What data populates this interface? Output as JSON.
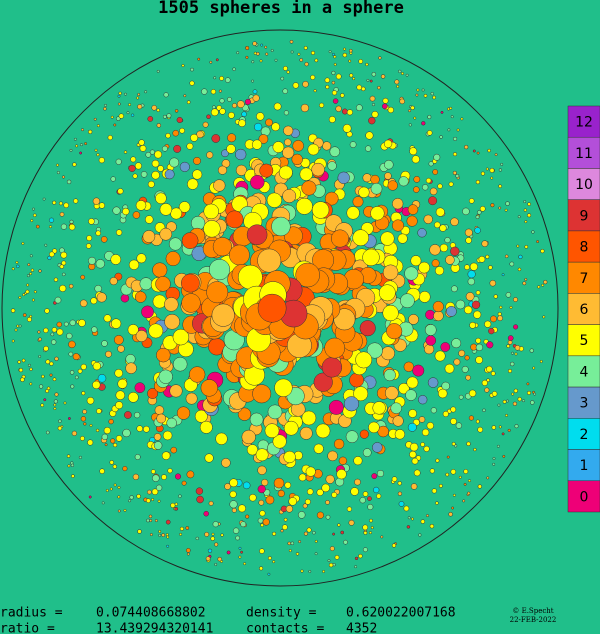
{
  "title": "1505 spheres in a sphere",
  "legend": [
    {
      "label": "12",
      "color": "#9922cc"
    },
    {
      "label": "11",
      "color": "#b34fd9"
    },
    {
      "label": "10",
      "color": "#dd88dd"
    },
    {
      "label": "9",
      "color": "#dd3333"
    },
    {
      "label": "8",
      "color": "#ff5500"
    },
    {
      "label": "7",
      "color": "#ff8800"
    },
    {
      "label": "6",
      "color": "#ffbb33"
    },
    {
      "label": "5",
      "color": "#ffff00"
    },
    {
      "label": "4",
      "color": "#77ee99"
    },
    {
      "label": "3",
      "color": "#6699cc"
    },
    {
      "label": "2",
      "color": "#00ddee"
    },
    {
      "label": "1",
      "color": "#33aaee"
    },
    {
      "label": "0",
      "color": "#ee0077"
    }
  ],
  "footer": {
    "radius_label": "radius =",
    "radius": "0.074408668802",
    "density_label": "density  =",
    "density": "0.620022007168",
    "ratio_label": "ratio  =",
    "ratio": "13.439294320141",
    "contacts_label": "contacts =",
    "contacts": "4352",
    "credit": "© E.Specht",
    "date": "22-FEB-2022"
  }
}
